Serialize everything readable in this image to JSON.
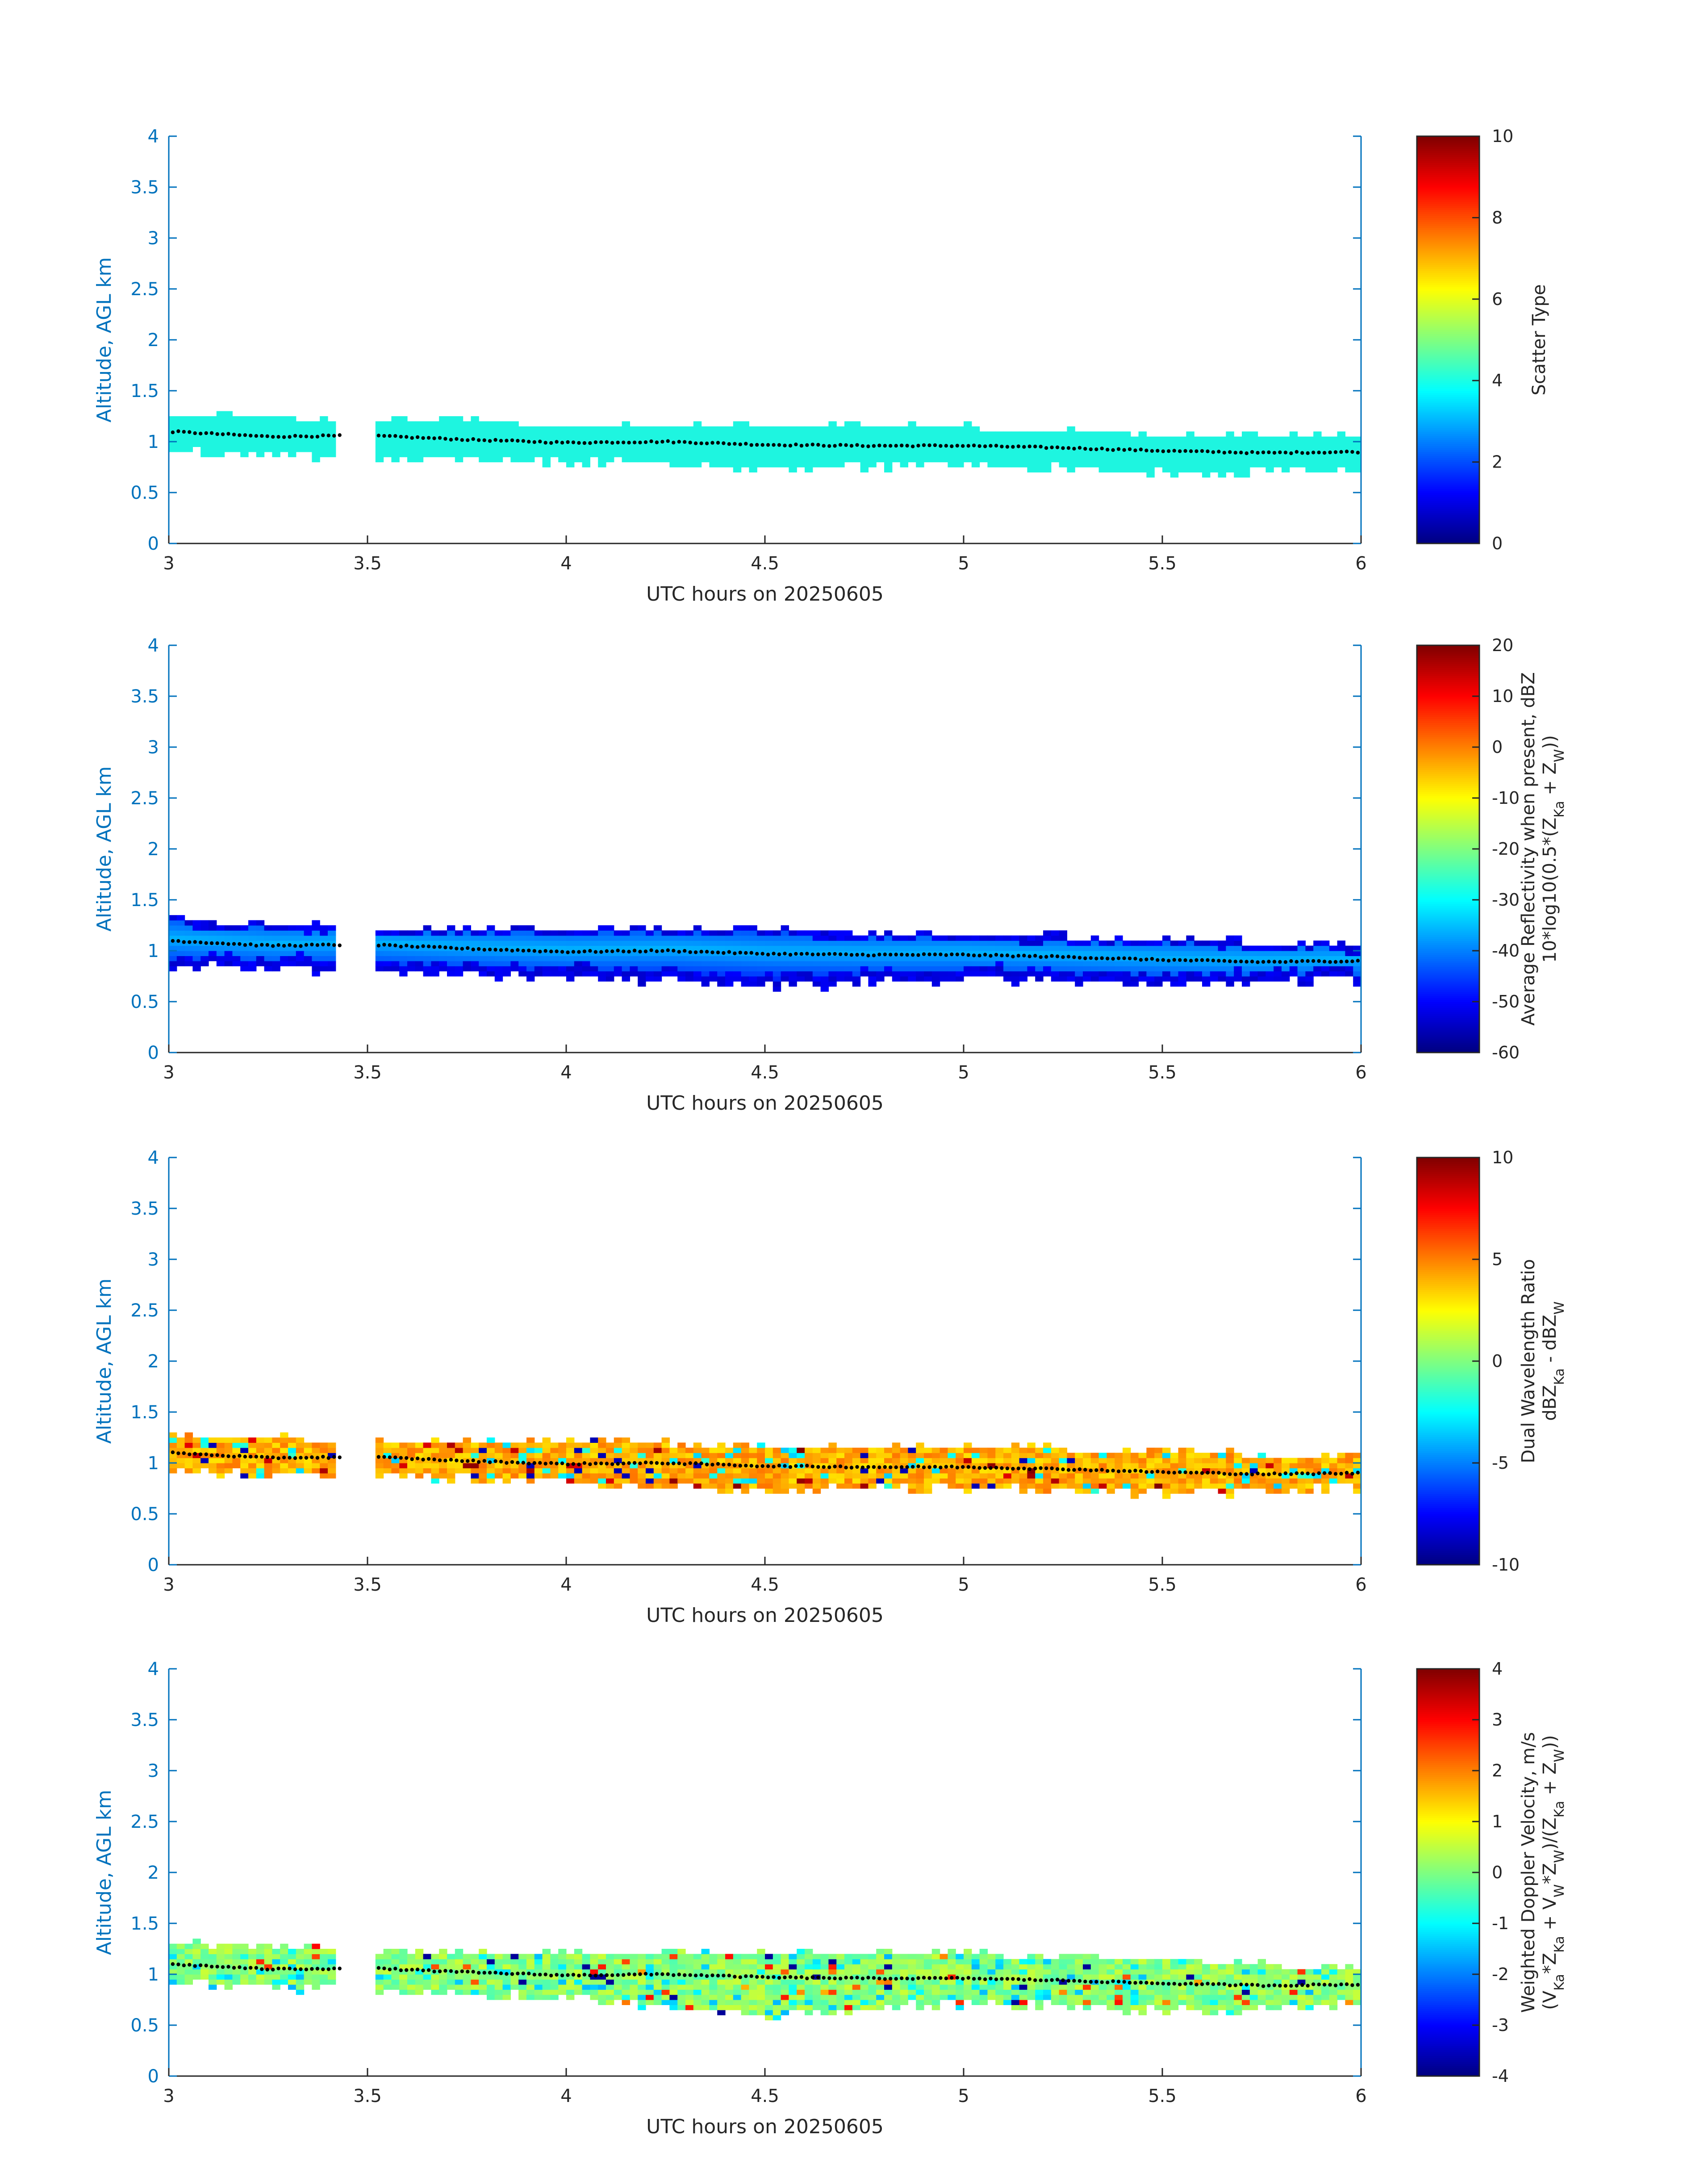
{
  "chart_data": [
    {
      "type": "heatmap",
      "xlabel": "UTC hours on 20250605",
      "ylabel": "Altitude, AGL km",
      "xlim": [
        3,
        6
      ],
      "ylim": [
        0,
        4
      ],
      "x_ticks": [
        "3",
        "3.5",
        "4",
        "4.5",
        "5",
        "5.5",
        "6"
      ],
      "y_ticks": [
        "0",
        "0.5",
        "1",
        "1.5",
        "2",
        "2.5",
        "3",
        "3.5",
        "4"
      ],
      "colorbar": {
        "label_lines": [
          "Scatter Type"
        ],
        "range": [
          0,
          10
        ],
        "ticks": [
          "0",
          "2",
          "4",
          "6",
          "8",
          "10"
        ]
      },
      "field": {
        "kind": "scatter_type",
        "layer": [
          {
            "x": 3.0,
            "bottom": 0.98,
            "top": 1.23
          },
          {
            "x": 3.5,
            "bottom": 0.92,
            "top": 1.18
          },
          {
            "x": 4.0,
            "bottom": 0.88,
            "top": 1.14
          },
          {
            "x": 4.5,
            "bottom": 0.8,
            "top": 1.12
          },
          {
            "x": 5.0,
            "bottom": 0.84,
            "top": 1.1
          },
          {
            "x": 5.5,
            "bottom": 0.76,
            "top": 1.04
          },
          {
            "x": 6.0,
            "bottom": 0.8,
            "top": 1.0
          }
        ]
      }
    },
    {
      "type": "heatmap",
      "xlabel": "UTC hours on 20250605",
      "ylabel": "Altitude, AGL km",
      "xlim": [
        3,
        6
      ],
      "ylim": [
        0,
        4
      ],
      "x_ticks": [
        "3",
        "3.5",
        "4",
        "4.5",
        "5",
        "5.5",
        "6"
      ],
      "y_ticks": [
        "0",
        "0.5",
        "1",
        "1.5",
        "2",
        "2.5",
        "3",
        "3.5",
        "4"
      ],
      "colorbar": {
        "label_lines": [
          "Average Reflectivity when present, dBZ",
          "10*log10(0.5*(Z_Ka + Z_W))"
        ],
        "range": [
          -60,
          20
        ],
        "ticks": [
          "-60",
          "-50",
          "-40",
          "-30",
          "-20",
          "-10",
          "0",
          "10",
          "20"
        ]
      },
      "field": {
        "kind": "reflectivity",
        "layer": [
          {
            "x": 3.0,
            "bottom": 0.92,
            "top": 1.27
          },
          {
            "x": 3.5,
            "bottom": 0.88,
            "top": 1.18
          },
          {
            "x": 4.0,
            "bottom": 0.8,
            "top": 1.18
          },
          {
            "x": 4.5,
            "bottom": 0.72,
            "top": 1.17
          },
          {
            "x": 5.0,
            "bottom": 0.8,
            "top": 1.12
          },
          {
            "x": 5.5,
            "bottom": 0.74,
            "top": 1.08
          },
          {
            "x": 6.0,
            "bottom": 0.78,
            "top": 1.0
          }
        ]
      }
    },
    {
      "type": "heatmap",
      "xlabel": "UTC hours on 20250605",
      "ylabel": "Altitude, AGL km",
      "xlim": [
        3,
        6
      ],
      "ylim": [
        0,
        4
      ],
      "x_ticks": [
        "3",
        "3.5",
        "4",
        "4.5",
        "5",
        "5.5",
        "6"
      ],
      "y_ticks": [
        "0",
        "0.5",
        "1",
        "1.5",
        "2",
        "2.5",
        "3",
        "3.5",
        "4"
      ],
      "colorbar": {
        "label_lines": [
          "Dual Wavelength Ratio",
          "dBZ_Ka - dBZ_W"
        ],
        "range": [
          -10,
          10
        ],
        "ticks": [
          "-10",
          "-5",
          "0",
          "5",
          "10"
        ]
      },
      "field": {
        "kind": "dwr",
        "layer": [
          {
            "x": 3.0,
            "bottom": 0.98,
            "top": 1.24
          },
          {
            "x": 3.5,
            "bottom": 0.94,
            "top": 1.18
          },
          {
            "x": 4.0,
            "bottom": 0.9,
            "top": 1.16
          },
          {
            "x": 4.5,
            "bottom": 0.8,
            "top": 1.14
          },
          {
            "x": 5.0,
            "bottom": 0.84,
            "top": 1.12
          },
          {
            "x": 5.5,
            "bottom": 0.78,
            "top": 1.08
          },
          {
            "x": 6.0,
            "bottom": 0.82,
            "top": 1.0
          }
        ]
      }
    },
    {
      "type": "heatmap",
      "xlabel": "UTC hours on 20250605",
      "ylabel": "Altitude, AGL km",
      "xlim": [
        3,
        6
      ],
      "ylim": [
        0,
        4
      ],
      "x_ticks": [
        "3",
        "3.5",
        "4",
        "4.5",
        "5",
        "5.5",
        "6"
      ],
      "y_ticks": [
        "0",
        "0.5",
        "1",
        "1.5",
        "2",
        "2.5",
        "3",
        "3.5",
        "4"
      ],
      "colorbar": {
        "label_lines": [
          "Weighted Doppler Velocity, m/s",
          "(V_Ka*Z_Ka + V_W*Z_W)/(Z_Ka + Z_W))"
        ],
        "range": [
          -4,
          4
        ],
        "ticks": [
          "-4",
          "-3",
          "-2",
          "-1",
          "0",
          "1",
          "2",
          "3",
          "4"
        ]
      },
      "field": {
        "kind": "velocity",
        "layer": [
          {
            "x": 3.0,
            "bottom": 0.96,
            "top": 1.26
          },
          {
            "x": 3.5,
            "bottom": 0.92,
            "top": 1.2
          },
          {
            "x": 4.0,
            "bottom": 0.84,
            "top": 1.2
          },
          {
            "x": 4.5,
            "bottom": 0.66,
            "top": 1.18
          },
          {
            "x": 5.0,
            "bottom": 0.8,
            "top": 1.16
          },
          {
            "x": 5.5,
            "bottom": 0.7,
            "top": 1.1
          },
          {
            "x": 6.0,
            "bottom": 0.78,
            "top": 1.0
          }
        ]
      }
    }
  ],
  "cloud_base_line": {
    "x": [
      3.0,
      3.25,
      3.5,
      3.75,
      4.0,
      4.25,
      4.5,
      4.75,
      5.0,
      5.25,
      5.5,
      5.75,
      6.0
    ],
    "y": [
      1.1,
      1.05,
      1.06,
      1.02,
      0.99,
      1.0,
      0.97,
      0.96,
      0.96,
      0.94,
      0.91,
      0.89,
      0.9
    ]
  },
  "data_gap_hours": [
    3.43,
    3.52
  ]
}
